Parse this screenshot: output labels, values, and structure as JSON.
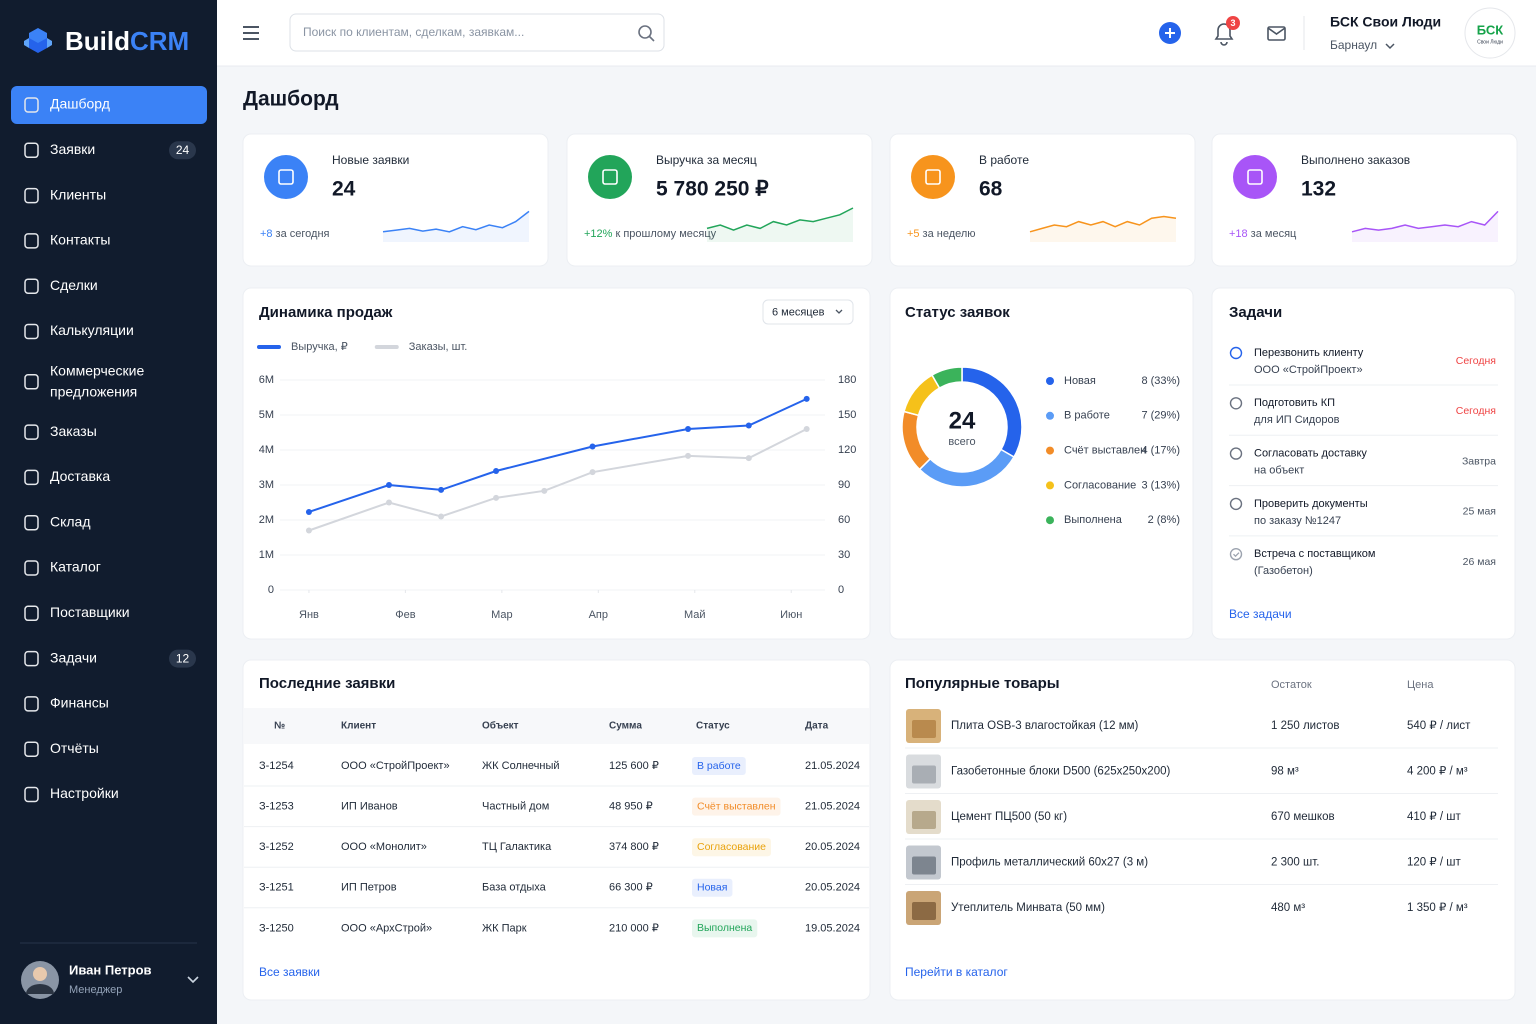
{
  "sidebar": {
    "logo": {
      "part1": "Build",
      "part2": "CRM"
    },
    "active_index": 0,
    "menu": [
      {
        "label": "Дашборд"
      },
      {
        "label": "Заявки",
        "badge": 24
      },
      {
        "label": "Клиенты"
      },
      {
        "label": "Контакты"
      },
      {
        "label": "Сделки"
      },
      {
        "label": "Калькуляции"
      },
      {
        "label": [
          "Коммерческие",
          "предложения"
        ]
      },
      {
        "label": "Заказы"
      },
      {
        "label": "Доставка"
      },
      {
        "label": "Склад"
      },
      {
        "label": "Каталог"
      },
      {
        "label": "Поставщики"
      },
      {
        "label": "Задачи",
        "badge": 12
      },
      {
        "label": "Финансы"
      },
      {
        "label": "Отчёты"
      },
      {
        "label": "Настройки"
      }
    ],
    "user": {
      "name": "Иван Петров",
      "role": "Менеджер"
    }
  },
  "header": {
    "search_placeholder": "Поиск по клиентам, сделкам, заявкам...",
    "notifications": 3,
    "company": "БСК Свои Люди",
    "city": "Барнаул",
    "avatar_text": "БСК",
    "avatar_sub": "Свои Люди"
  },
  "page_title": "Дашборд",
  "kpis": [
    {
      "label": "Новые заявки",
      "value": 24,
      "delta": "+8",
      "delta_text": "за сегодня",
      "color": "#3b82f6",
      "spark_ylim": [
        0,
        10
      ],
      "spark": [
        3,
        3.5,
        4,
        3.2,
        3.8,
        3,
        4.5,
        3.6,
        5,
        4.2,
        6,
        9
      ]
    },
    {
      "label": "Выручка за месяц",
      "value": "5 780 250 ₽",
      "delta": "+12%",
      "delta_text": "к прошлому месяцу",
      "color": "#22a55a",
      "spark_ylim": [
        0,
        10
      ],
      "spark": [
        4,
        5,
        3.5,
        5,
        4,
        6,
        5,
        6.5,
        6,
        7,
        8,
        10
      ]
    },
    {
      "label": "В работе",
      "value": 68,
      "delta": "+5",
      "delta_text": "за неделю",
      "color": "#f7941d",
      "spark_ylim": [
        0,
        10
      ],
      "spark": [
        3,
        4,
        5,
        4.5,
        6,
        5,
        6,
        4.5,
        6,
        5,
        7,
        7.5,
        7
      ]
    },
    {
      "label": "Выполнено заказов",
      "value": 132,
      "delta": "+18",
      "delta_text": "за месяц",
      "color": "#a855f7",
      "spark_ylim": [
        0,
        10
      ],
      "spark": [
        3,
        4,
        3.5,
        4,
        5,
        4,
        4.5,
        5,
        4.5,
        6,
        5,
        9
      ]
    }
  ],
  "chart_data": [
    {
      "type": "line",
      "title": "Динамика продаж",
      "period": "6 месяцев",
      "xlim": [
        -0.3,
        5.35
      ],
      "xticks": [
        {
          "value": 0,
          "label": "Янв"
        },
        {
          "value": 1,
          "label": "Фев"
        },
        {
          "value": 2,
          "label": "Мар"
        },
        {
          "value": 3,
          "label": "Апр"
        },
        {
          "value": 4,
          "label": "Май"
        },
        {
          "value": 5,
          "label": "Июн"
        }
      ],
      "ylim": [
        0,
        6000000
      ],
      "yticks": [
        0,
        {
          "value": 1000000,
          "label": "1M"
        },
        {
          "value": 2000000,
          "label": "2M"
        },
        {
          "value": 3000000,
          "label": "3M"
        },
        {
          "value": 4000000,
          "label": "4M"
        },
        {
          "value": 5000000,
          "label": "5M"
        },
        {
          "value": 6000000,
          "label": "6M"
        }
      ],
      "y2lim": [
        0,
        180
      ],
      "y2ticks": [
        0,
        30,
        60,
        90,
        120,
        150,
        180
      ],
      "series": [
        {
          "name": "Выручка, ₽",
          "color": "#2563eb",
          "x": [
            0,
            0.83,
            1.37,
            1.94,
            2.94,
            3.93,
            4.56,
            5.16
          ],
          "values": [
            2230000,
            3000000,
            2860000,
            3400000,
            4100000,
            4600000,
            4700000,
            5460000
          ]
        },
        {
          "name": "Заказы, шт.",
          "color": "#d3d6dc",
          "axis": "y2",
          "x": [
            0,
            0.83,
            1.37,
            1.94,
            2.44,
            2.94,
            3.93,
            4.56,
            5.16
          ],
          "values": [
            51,
            75,
            63,
            79,
            85,
            101,
            115,
            113,
            138
          ]
        }
      ]
    },
    {
      "type": "pie",
      "donut": true,
      "title": "Статус заявок",
      "total": 24,
      "total_label": "всего",
      "categories": [
        "Новая",
        "В работе",
        "Счёт выставлен",
        "Согласование",
        "Выполнена"
      ],
      "values": [
        8,
        7,
        4,
        3,
        2
      ],
      "value_labels": [
        "8 (33%)",
        "7 (29%)",
        "4 (17%)",
        "3 (13%)",
        "2 (8%)"
      ],
      "colors": [
        "#2563eb",
        "#5b9cf6",
        "#f28c28",
        "#f5c11a",
        "#3bb35b"
      ]
    }
  ],
  "tasks": {
    "title": "Задачи",
    "items": [
      {
        "title": "Перезвонить клиенту",
        "subtitle": "ООО «СтройПроект»",
        "due": "Сегодня",
        "urgent": true
      },
      {
        "title": "Подготовить КП",
        "subtitle": "для ИП Сидоров",
        "due": "Сегодня",
        "urgent": true
      },
      {
        "title": "Согласовать доставку",
        "subtitle": "на объект",
        "due": "Завтра"
      },
      {
        "title": "Проверить документы",
        "subtitle": "по заказу №1247",
        "due": "25 мая"
      },
      {
        "title": "Встреча с поставщиком",
        "subtitle": "(Газобетон)",
        "due": "26 мая",
        "done": true
      }
    ],
    "link": "Все задачи"
  },
  "orders": {
    "title": "Последние заявки",
    "columns": [
      "№",
      "Клиент",
      "Объект",
      "Сумма",
      "Статус",
      "Дата"
    ],
    "rows": [
      {
        "id": "З-1254",
        "client": "ООО «СтройПроект»",
        "object": "ЖК Солнечный",
        "sum": "125 600 ₽",
        "status": "В работе",
        "status_color": "#2563eb",
        "date": "21.05.2024"
      },
      {
        "id": "З-1253",
        "client": "ИП Иванов",
        "object": "Частный дом",
        "sum": "48 950 ₽",
        "status": "Счёт выставлен",
        "status_color": "#f28c28",
        "date": "21.05.2024"
      },
      {
        "id": "З-1252",
        "client": "ООО «Монолит»",
        "object": "ТЦ Галактика",
        "sum": "374 800 ₽",
        "status": "Согласование",
        "status_color": "#e9a20c",
        "date": "20.05.2024"
      },
      {
        "id": "З-1251",
        "client": "ИП Петров",
        "object": "База отдыха",
        "sum": "66 300 ₽",
        "status": "Новая",
        "status_color": "#2563eb",
        "date": "20.05.2024"
      },
      {
        "id": "З-1250",
        "client": "ООО «АрхСтрой»",
        "object": "ЖК Парк",
        "sum": "210 000 ₽",
        "status": "Выполнена",
        "status_color": "#22a55a",
        "date": "19.05.2024"
      }
    ],
    "link": "Все заявки"
  },
  "products": {
    "title": "Популярные товары",
    "columns": [
      "Остаток",
      "Цена"
    ],
    "rows": [
      {
        "name": "Плита OSB-3 влагостойкая (12 мм)",
        "stock": "1 250 листов",
        "price": "540 ₽ / лист"
      },
      {
        "name": "Газобетонные блоки D500 (625x250x200)",
        "stock": "98 м³",
        "price": "4 200 ₽ / м³"
      },
      {
        "name": "Цемент ПЦ500 (50 кг)",
        "stock": "670 мешков",
        "price": "410 ₽ / шт"
      },
      {
        "name": "Профиль металлический 60x27 (3 м)",
        "stock": "2 300 шт.",
        "price": "120 ₽ / шт"
      },
      {
        "name": "Утеплитель Минвата (50 мм)",
        "stock": "480 м³",
        "price": "1 350 ₽ / м³"
      }
    ],
    "link": "Перейти в каталог"
  }
}
